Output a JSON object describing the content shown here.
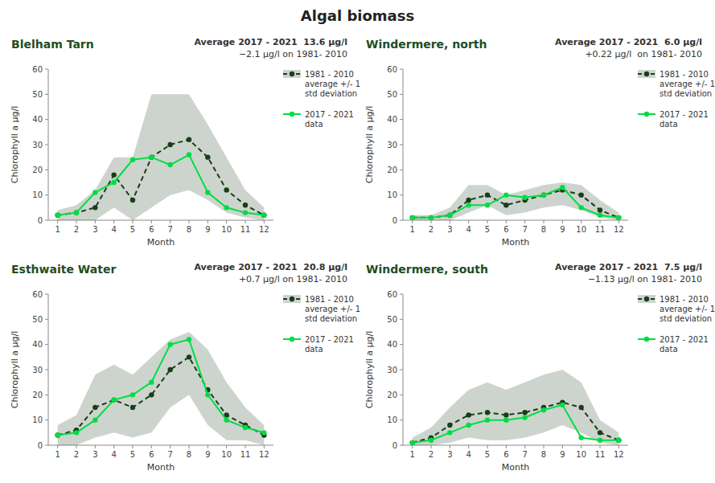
{
  "title": "Algal biomass",
  "chart_data": [
    {
      "type": "line",
      "title": "Blelham Tarn",
      "annotations": [
        "Average 2017 - 2021  13.6 μg/l",
        "−2.1 μg/l on 1981- 2010"
      ],
      "x_label": "Month",
      "y_label": "Chlorophyll a μg/l",
      "x": [
        1,
        2,
        3,
        4,
        5,
        6,
        7,
        8,
        9,
        10,
        11,
        12
      ],
      "xlim": [
        0.5,
        12.5
      ],
      "xticks": [
        1,
        2,
        3,
        4,
        5,
        6,
        7,
        8,
        9,
        10,
        11,
        12
      ],
      "ylim": [
        0,
        60
      ],
      "yticks": [
        0,
        10,
        20,
        30,
        40,
        50,
        60
      ],
      "grid": false,
      "legend": "right",
      "series": [
        {
          "name": "1981 - 2010\naverage +/- 1\nstd deviation",
          "color": "#1a3d1a",
          "line_style": "dashed",
          "marker": "circle",
          "values": [
            2,
            3,
            5,
            18,
            8,
            25,
            30,
            32,
            25,
            12,
            6,
            2
          ],
          "upper": [
            4,
            6,
            12,
            25,
            25,
            50,
            50,
            50,
            38,
            25,
            12,
            5
          ],
          "lower": [
            0,
            0,
            0,
            5,
            0,
            5,
            10,
            12,
            8,
            3,
            1,
            0
          ]
        },
        {
          "name": "2017 - 2021\ndata",
          "color": "#00dd44",
          "line_style": "solid",
          "marker": "circle",
          "values": [
            2,
            3,
            11,
            15,
            24,
            25,
            22,
            26,
            11,
            5,
            3,
            2
          ]
        }
      ]
    },
    {
      "type": "line",
      "title": "Windermere, north",
      "annotations": [
        "Average 2017 - 2021  6.0 μg/l",
        "+0.22 μg/l  on 1981- 2010"
      ],
      "x_label": "Month",
      "y_label": "Chlorophyll a μg/l",
      "x": [
        1,
        2,
        3,
        4,
        5,
        6,
        7,
        8,
        9,
        10,
        11,
        12
      ],
      "xlim": [
        0.5,
        12.5
      ],
      "xticks": [
        1,
        2,
        3,
        4,
        5,
        6,
        7,
        8,
        9,
        10,
        11,
        12
      ],
      "ylim": [
        0,
        60
      ],
      "yticks": [
        0,
        10,
        20,
        30,
        40,
        50,
        60
      ],
      "grid": false,
      "legend": "right",
      "series": [
        {
          "name": "1981 - 2010\naverage +/- 1\nstd deviation",
          "color": "#1a3d1a",
          "line_style": "dashed",
          "marker": "circle",
          "values": [
            1,
            1,
            2,
            8,
            10,
            6,
            8,
            10,
            12,
            10,
            4,
            1
          ],
          "upper": [
            2,
            2,
            5,
            14,
            14,
            10,
            12,
            14,
            15,
            14,
            8,
            3
          ],
          "lower": [
            0,
            0,
            0,
            3,
            6,
            2,
            3,
            5,
            6,
            4,
            1,
            0
          ]
        },
        {
          "name": "2017 - 2021\ndata",
          "color": "#00dd44",
          "line_style": "solid",
          "marker": "circle",
          "values": [
            1,
            1,
            2,
            6,
            6,
            10,
            9,
            10,
            13,
            5,
            2,
            1
          ]
        }
      ]
    },
    {
      "type": "line",
      "title": "Esthwaite Water",
      "annotations": [
        "Average 2017 - 2021  20.8 μg/l",
        "+0.7 μg/l on 1981- 2010"
      ],
      "x_label": "Month",
      "y_label": "Chlorophyll a μg/l",
      "x": [
        1,
        2,
        3,
        4,
        5,
        6,
        7,
        8,
        9,
        10,
        11,
        12
      ],
      "xlim": [
        0.5,
        12.5
      ],
      "xticks": [
        1,
        2,
        3,
        4,
        5,
        6,
        7,
        8,
        9,
        10,
        11,
        12
      ],
      "ylim": [
        0,
        60
      ],
      "yticks": [
        0,
        10,
        20,
        30,
        40,
        50,
        60
      ],
      "grid": false,
      "legend": "right",
      "series": [
        {
          "name": "1981 - 2010\naverage +/- 1\nstd deviation",
          "color": "#1a3d1a",
          "line_style": "dashed",
          "marker": "circle",
          "values": [
            4,
            6,
            15,
            18,
            15,
            20,
            30,
            35,
            22,
            12,
            8,
            4
          ],
          "upper": [
            8,
            12,
            28,
            32,
            28,
            35,
            42,
            45,
            38,
            25,
            15,
            8
          ],
          "lower": [
            0,
            0,
            3,
            5,
            3,
            5,
            15,
            20,
            8,
            2,
            2,
            0
          ]
        },
        {
          "name": "2017 - 2021\ndata",
          "color": "#00dd44",
          "line_style": "solid",
          "marker": "circle",
          "values": [
            4,
            5,
            10,
            18,
            20,
            25,
            40,
            42,
            20,
            10,
            7,
            5
          ]
        }
      ]
    },
    {
      "type": "line",
      "title": "Windermere, south",
      "annotations": [
        "Average 2017 - 2021  7.5 μg/l",
        "−1.13 μg/l on 1981- 2010"
      ],
      "x_label": "Month",
      "y_label": "Chlorophyll a μg/l",
      "x": [
        1,
        2,
        3,
        4,
        5,
        6,
        7,
        8,
        9,
        10,
        11,
        12
      ],
      "xlim": [
        0.5,
        12.5
      ],
      "xticks": [
        1,
        2,
        3,
        4,
        5,
        6,
        7,
        8,
        9,
        10,
        11,
        12
      ],
      "ylim": [
        0,
        60
      ],
      "yticks": [
        0,
        10,
        20,
        30,
        40,
        50,
        60
      ],
      "grid": false,
      "legend": "right",
      "series": [
        {
          "name": "1981 - 2010\naverage +/- 1\nstd deviation",
          "color": "#1a3d1a",
          "line_style": "dashed",
          "marker": "circle",
          "values": [
            1,
            3,
            8,
            12,
            13,
            12,
            13,
            15,
            17,
            15,
            5,
            2
          ],
          "upper": [
            3,
            7,
            15,
            22,
            25,
            22,
            25,
            28,
            30,
            25,
            10,
            5
          ],
          "lower": [
            0,
            0,
            1,
            3,
            2,
            2,
            3,
            5,
            8,
            5,
            1,
            0
          ]
        },
        {
          "name": "2017 - 2021\ndata",
          "color": "#00dd44",
          "line_style": "solid",
          "marker": "circle",
          "values": [
            1,
            2,
            5,
            8,
            10,
            10,
            11,
            14,
            16,
            3,
            2,
            2
          ]
        }
      ]
    }
  ]
}
